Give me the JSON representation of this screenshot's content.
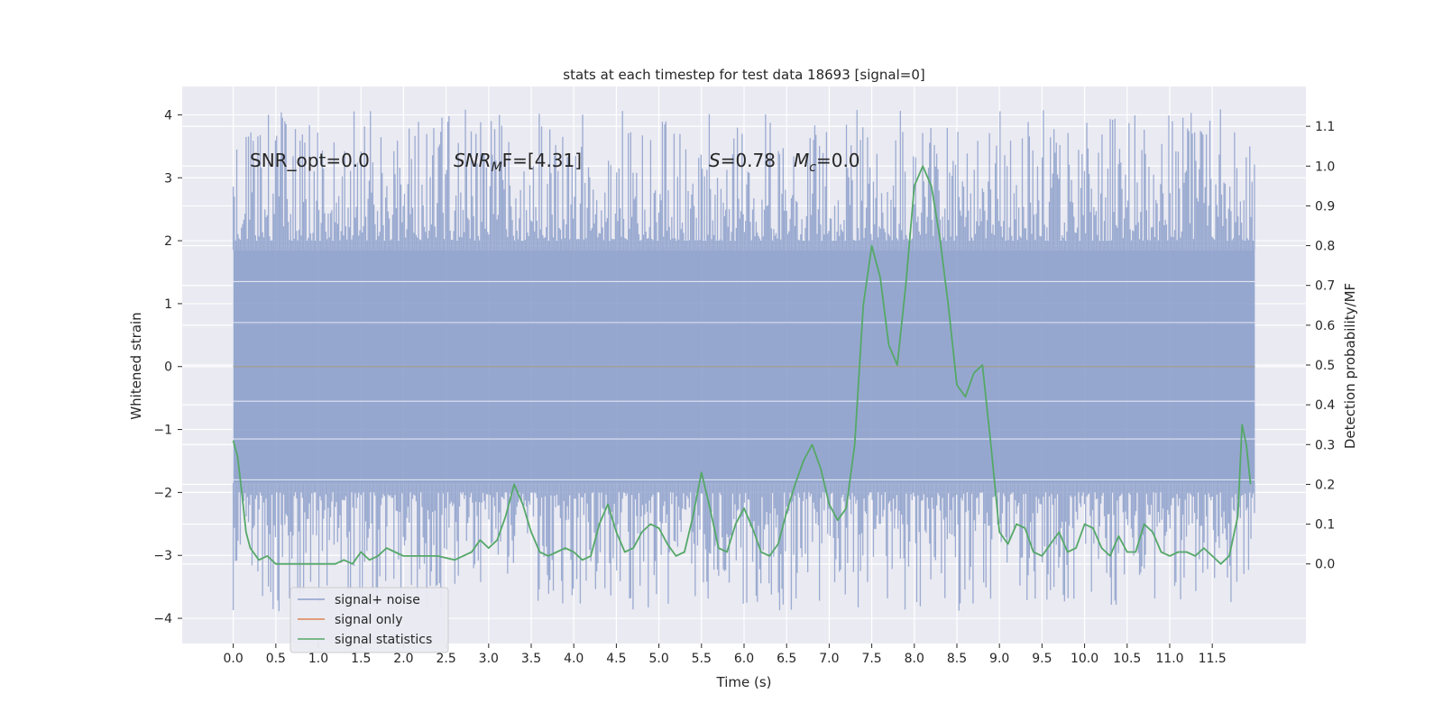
{
  "chart_data": {
    "type": "line",
    "title": "stats at each timestep for test data 18693 [signal=0]",
    "xlabel": "Time (s)",
    "ylabel": "Whitened strain",
    "ylabel_right": "Detection probability/MF",
    "xlim": [
      -0.6,
      12.6
    ],
    "ylim": [
      -4.4,
      4.45
    ],
    "ylim_right": [
      -0.2,
      1.2
    ],
    "x_ticks": [
      "0.0",
      "0.5",
      "1.0",
      "1.5",
      "2.0",
      "2.5",
      "3.0",
      "3.5",
      "4.0",
      "4.5",
      "5.0",
      "5.5",
      "6.0",
      "6.5",
      "7.0",
      "7.5",
      "8.0",
      "8.5",
      "9.0",
      "9.5",
      "10.0",
      "10.5",
      "11.0",
      "11.5"
    ],
    "y_ticks_left": [
      "−4",
      "−3",
      "−2",
      "−1",
      "0",
      "1",
      "2",
      "3",
      "4"
    ],
    "y_ticks_right": [
      "0.0",
      "0.1",
      "0.2",
      "0.3",
      "0.4",
      "0.5",
      "0.6",
      "0.7",
      "0.8",
      "0.9",
      "1.0",
      "1.1"
    ],
    "grid": true,
    "legend_position": "lower-left",
    "annotations": {
      "snr_opt": "SNR_opt=0.0",
      "snr_mf_main": "SNR",
      "snr_mf_sub": "M",
      "snr_mf_rest": "F=[4.31]",
      "s_main": "S",
      "s_rest": "=0.78",
      "mc_main": "M",
      "mc_sub": "c",
      "mc_rest": "=0.0"
    },
    "series": [
      {
        "name": "signal+ noise",
        "color": "#8da0cb",
        "style": "dense noise band",
        "x_range": [
          0.0,
          12.0
        ],
        "core_band": [
          -1.85,
          1.85
        ],
        "peak_max": 4.1,
        "peak_min": -3.9
      },
      {
        "name": "signal only",
        "color": "#dd8452",
        "style": "flat at zero",
        "values": [
          0.0
        ]
      },
      {
        "name": "signal statistics",
        "color": "#55a868",
        "axis": "right",
        "x": [
          0.0,
          0.05,
          0.1,
          0.15,
          0.2,
          0.3,
          0.4,
          0.5,
          0.6,
          0.8,
          1.0,
          1.2,
          1.3,
          1.4,
          1.5,
          1.6,
          1.7,
          1.8,
          1.9,
          2.0,
          2.1,
          2.2,
          2.4,
          2.6,
          2.7,
          2.8,
          2.9,
          3.0,
          3.1,
          3.2,
          3.3,
          3.4,
          3.5,
          3.6,
          3.7,
          3.8,
          3.9,
          4.0,
          4.1,
          4.2,
          4.3,
          4.4,
          4.5,
          4.6,
          4.7,
          4.8,
          4.9,
          5.0,
          5.1,
          5.2,
          5.3,
          5.4,
          5.5,
          5.6,
          5.7,
          5.8,
          5.9,
          6.0,
          6.1,
          6.2,
          6.3,
          6.4,
          6.5,
          6.6,
          6.7,
          6.8,
          6.9,
          7.0,
          7.1,
          7.2,
          7.3,
          7.4,
          7.5,
          7.6,
          7.7,
          7.8,
          7.9,
          8.0,
          8.1,
          8.2,
          8.3,
          8.4,
          8.5,
          8.6,
          8.7,
          8.8,
          8.9,
          9.0,
          9.1,
          9.2,
          9.3,
          9.4,
          9.5,
          9.6,
          9.7,
          9.8,
          9.9,
          10.0,
          10.1,
          10.2,
          10.3,
          10.4,
          10.5,
          10.6,
          10.7,
          10.8,
          10.9,
          11.0,
          11.1,
          11.2,
          11.3,
          11.4,
          11.5,
          11.6,
          11.7,
          11.8,
          11.85,
          11.9,
          11.95
        ],
        "values": [
          0.31,
          0.27,
          0.18,
          0.08,
          0.04,
          0.01,
          0.02,
          0.0,
          0.0,
          0.0,
          0.0,
          0.0,
          0.01,
          0.0,
          0.03,
          0.01,
          0.02,
          0.04,
          0.03,
          0.02,
          0.02,
          0.02,
          0.02,
          0.01,
          0.02,
          0.03,
          0.06,
          0.04,
          0.06,
          0.12,
          0.2,
          0.15,
          0.08,
          0.03,
          0.02,
          0.03,
          0.04,
          0.03,
          0.01,
          0.02,
          0.1,
          0.15,
          0.08,
          0.03,
          0.04,
          0.08,
          0.1,
          0.09,
          0.05,
          0.02,
          0.03,
          0.12,
          0.23,
          0.14,
          0.04,
          0.03,
          0.1,
          0.14,
          0.09,
          0.03,
          0.02,
          0.05,
          0.13,
          0.2,
          0.26,
          0.3,
          0.24,
          0.15,
          0.11,
          0.14,
          0.3,
          0.65,
          0.8,
          0.72,
          0.55,
          0.5,
          0.7,
          0.95,
          1.0,
          0.95,
          0.82,
          0.65,
          0.45,
          0.42,
          0.48,
          0.5,
          0.3,
          0.08,
          0.05,
          0.1,
          0.09,
          0.03,
          0.02,
          0.05,
          0.08,
          0.03,
          0.04,
          0.1,
          0.09,
          0.04,
          0.02,
          0.07,
          0.03,
          0.03,
          0.1,
          0.08,
          0.03,
          0.02,
          0.03,
          0.03,
          0.02,
          0.04,
          0.02,
          0.0,
          0.02,
          0.12,
          0.35,
          0.3,
          0.2
        ]
      }
    ]
  }
}
